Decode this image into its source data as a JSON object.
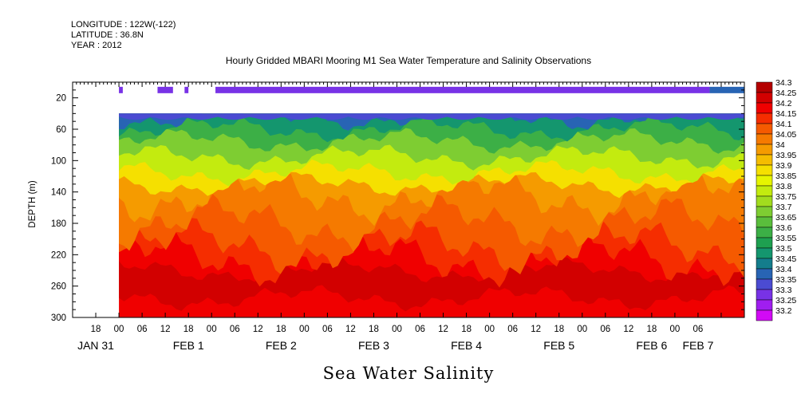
{
  "meta": {
    "longitude": "LONGITUDE : 122W(-122)",
    "latitude": "LATITUDE : 36.8N",
    "year": "YEAR : 2012"
  },
  "chart_data": {
    "type": "heatmap",
    "title": "Hourly Gridded MBARI Mooring M1 Sea Water Temperature and Salinity Observations",
    "xlabel": "Sea Water Salinity",
    "ylabel": "DEPTH (m)",
    "x_range_hours": [
      -12,
      162
    ],
    "ylim": [
      300,
      0
    ],
    "y_ticks": [
      20,
      60,
      100,
      140,
      180,
      220,
      260,
      300
    ],
    "x_hour_labels": [
      "18",
      "00",
      "06",
      "12",
      "18",
      "00",
      "06",
      "12",
      "18",
      "00",
      "06",
      "12",
      "18",
      "00",
      "06",
      "12",
      "18",
      "00",
      "06",
      "12",
      "18",
      "00",
      "06",
      "12",
      "18",
      "00",
      "06"
    ],
    "x_day_labels": [
      "JAN 31",
      "FEB 1",
      "FEB 2",
      "FEB 3",
      "FEB 4",
      "FEB 5",
      "FEB 6",
      "FEB 7"
    ],
    "colorbar": {
      "levels": [
        34.3,
        34.25,
        34.2,
        34.15,
        34.1,
        34.05,
        34,
        33.95,
        33.9,
        33.85,
        33.8,
        33.75,
        33.7,
        33.65,
        33.6,
        33.55,
        33.5,
        33.45,
        33.4,
        33.35,
        33.3,
        33.25,
        33.2
      ],
      "colors": [
        "#b40000",
        "#d20000",
        "#f00000",
        "#f52d00",
        "#f55a00",
        "#f57a00",
        "#f59b00",
        "#f5bd00",
        "#f5e000",
        "#e6f500",
        "#c3eb0f",
        "#a2dc1e",
        "#7ecd32",
        "#5abe3c",
        "#3caf46",
        "#1ea050",
        "#14966e",
        "#147d8c",
        "#2864b4",
        "#4b4bd2",
        "#7832e6",
        "#a01ef0",
        "#d20af5"
      ]
    },
    "surface_band": {
      "depth": 10,
      "value_range": [
        33.3,
        33.4
      ],
      "segments_hours": [
        [
          0,
          1
        ],
        [
          10,
          14
        ],
        [
          17,
          18
        ],
        [
          25,
          153
        ],
        [
          153,
          162
        ]
      ]
    },
    "data_depth_range": [
      40,
      300
    ],
    "data_hour_range": [
      0,
      162
    ],
    "layers_depth_by_value": [
      {
        "value": 33.4,
        "depth": 45
      },
      {
        "value": 33.5,
        "depth": 60
      },
      {
        "value": 33.6,
        "depth": 75
      },
      {
        "value": 33.7,
        "depth": 95
      },
      {
        "value": 33.8,
        "depth": 115
      },
      {
        "value": 33.9,
        "depth": 130
      },
      {
        "value": 34.0,
        "depth": 145
      },
      {
        "value": 34.05,
        "depth": 180
      },
      {
        "value": 34.1,
        "depth": 210
      },
      {
        "value": 34.15,
        "depth": 225
      },
      {
        "value": 34.2,
        "depth": 240
      },
      {
        "value": 34.25,
        "depth": 275
      }
    ]
  }
}
